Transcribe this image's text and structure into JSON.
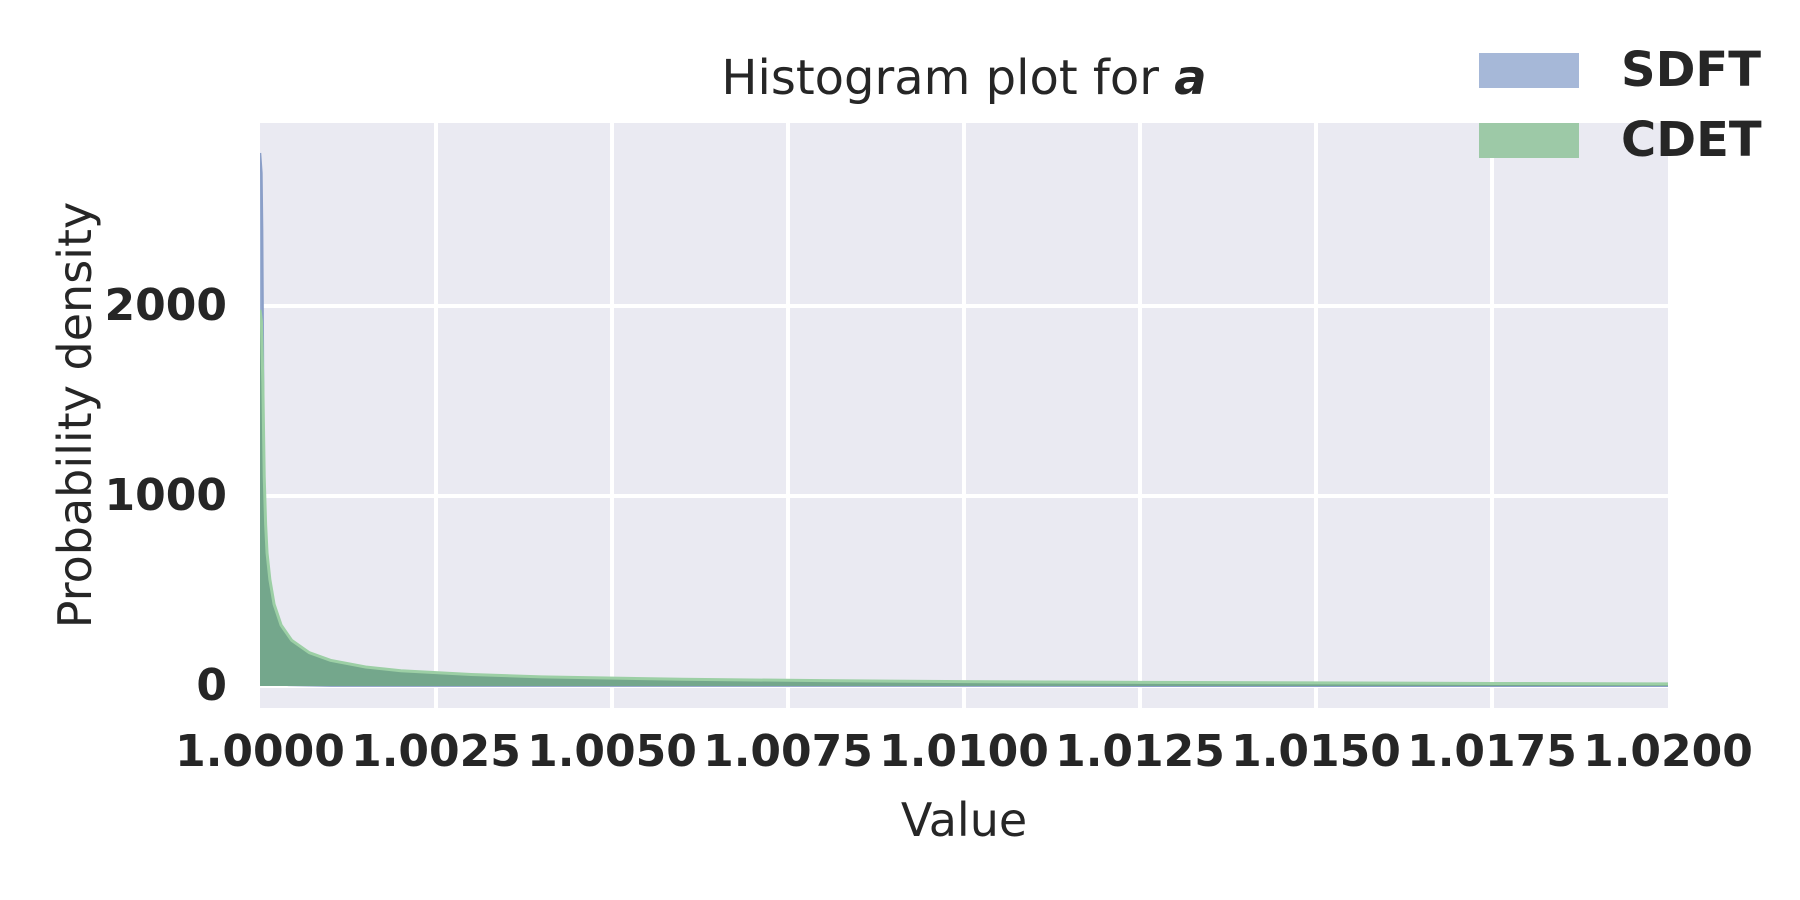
{
  "figure": {
    "title_prefix": "Histogram plot for ",
    "title_emphasis": "a",
    "background": "#ffffff",
    "text_color": "#262626"
  },
  "legend": {
    "position": "upper-right-outside",
    "entries": [
      {
        "label": "SDFT",
        "color": "#a6b8d8"
      },
      {
        "label": "CDET",
        "color": "#9dc9a7"
      }
    ]
  },
  "chart_data": {
    "type": "area",
    "title": "Histogram plot for a",
    "xlabel": "Value",
    "ylabel": "Probability density",
    "xlim": [
      1.0,
      1.02
    ],
    "ylim": [
      -116,
      2963
    ],
    "grid": true,
    "plot_background": "#eaeaf2",
    "grid_color": "#ffffff",
    "x_ticks": [
      {
        "value": 1.0,
        "label": "1.0000"
      },
      {
        "value": 1.0025,
        "label": "1.0025"
      },
      {
        "value": 1.005,
        "label": "1.0050"
      },
      {
        "value": 1.0075,
        "label": "1.0075"
      },
      {
        "value": 1.01,
        "label": "1.0100"
      },
      {
        "value": 1.0125,
        "label": "1.0125"
      },
      {
        "value": 1.015,
        "label": "1.0150"
      },
      {
        "value": 1.0175,
        "label": "1.0175"
      },
      {
        "value": 1.02,
        "label": "1.0200"
      }
    ],
    "y_ticks": [
      {
        "value": 0,
        "label": "0"
      },
      {
        "value": 1000,
        "label": "1000"
      },
      {
        "value": 2000,
        "label": "2000"
      }
    ],
    "series": [
      {
        "name": "SDFT",
        "fill": "#9fb3d5",
        "stroke": "#8b9fc8",
        "stroke_width": 2.5,
        "points": [
          [
            1.0,
            2805
          ],
          [
            1.00002,
            2700
          ],
          [
            1.00003,
            2400
          ],
          [
            1.00004,
            1800
          ],
          [
            1.00005,
            1100
          ],
          [
            1.00006,
            600
          ],
          [
            1.00008,
            280
          ],
          [
            1.0001,
            140
          ],
          [
            1.00015,
            50
          ],
          [
            1.0002,
            20
          ],
          [
            1.0004,
            6
          ],
          [
            1.001,
            2
          ],
          [
            1.02,
            1
          ]
        ]
      },
      {
        "name": "CDET",
        "fill": "#74a78c",
        "stroke": "#9ccfa5",
        "stroke_width": 3,
        "points": [
          [
            1.0,
            1980
          ],
          [
            1.00002,
            1920
          ],
          [
            1.00004,
            1600
          ],
          [
            1.00006,
            1100
          ],
          [
            1.00008,
            850
          ],
          [
            1.0001,
            700
          ],
          [
            1.00014,
            560
          ],
          [
            1.0002,
            430
          ],
          [
            1.0003,
            320
          ],
          [
            1.00045,
            240
          ],
          [
            1.0007,
            175
          ],
          [
            1.001,
            135
          ],
          [
            1.0015,
            100
          ],
          [
            1.002,
            80
          ],
          [
            1.003,
            60
          ],
          [
            1.004,
            48
          ],
          [
            1.006,
            35
          ],
          [
            1.008,
            28
          ],
          [
            1.01,
            23
          ],
          [
            1.0125,
            19
          ],
          [
            1.015,
            16
          ],
          [
            1.0175,
            13
          ],
          [
            1.02,
            11
          ]
        ]
      }
    ]
  }
}
